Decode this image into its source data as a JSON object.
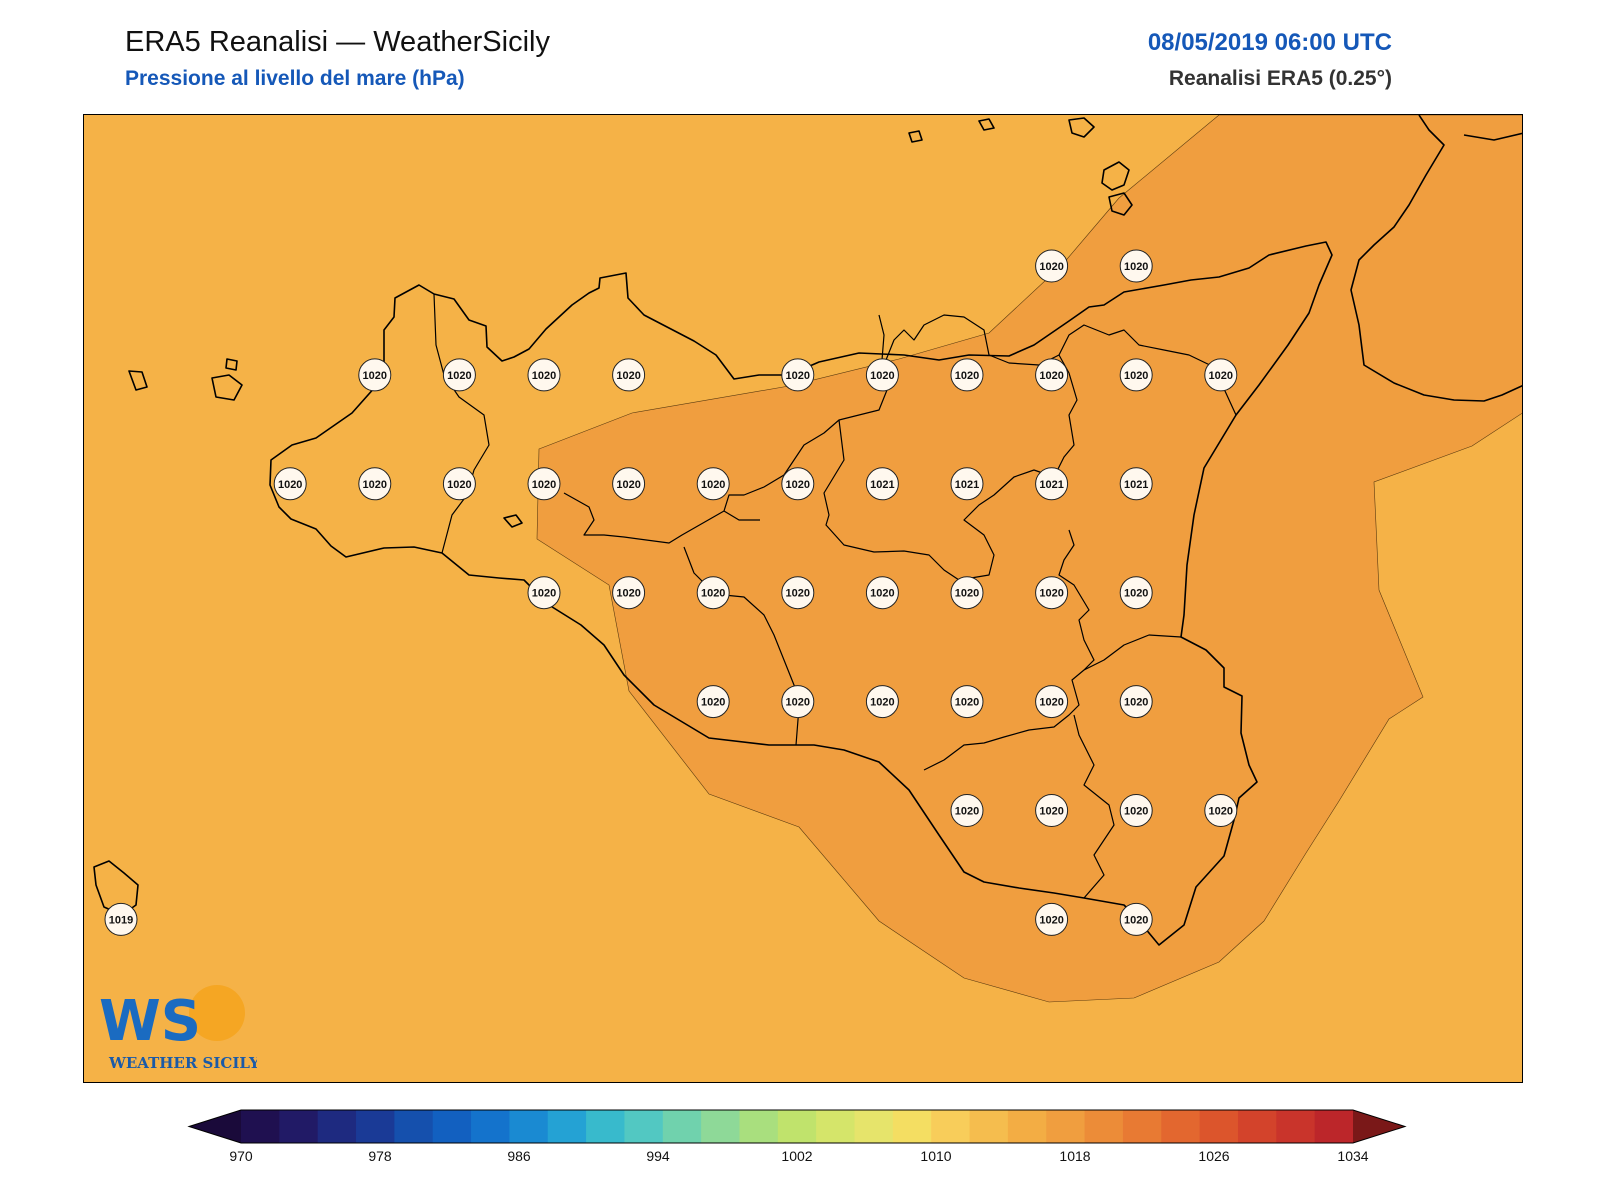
{
  "header": {
    "title": "ERA5 Reanalisi — WeatherSicily",
    "subtitle": "Pressione al livello del mare (hPa)",
    "datetime": "08/05/2019 06:00 UTC",
    "source": "Reanalisi ERA5 (0.25°)"
  },
  "colors": {
    "field_base": "#f5b247",
    "field_high": "#f09e3f",
    "coast": "#000000",
    "label_bg": "#fff8ee"
  },
  "map": {
    "region": "Sicilia",
    "field_levels": [
      1018,
      1020
    ],
    "pressure_labels": [
      {
        "v": "1020",
        "row": 0,
        "col": 11
      },
      {
        "v": "1020",
        "row": 0,
        "col": 12
      },
      {
        "v": "1020",
        "row": 1,
        "col": 3
      },
      {
        "v": "1020",
        "row": 1,
        "col": 4
      },
      {
        "v": "1020",
        "row": 1,
        "col": 5
      },
      {
        "v": "1020",
        "row": 1,
        "col": 6
      },
      {
        "v": "1020",
        "row": 1,
        "col": 8
      },
      {
        "v": "1020",
        "row": 1,
        "col": 9
      },
      {
        "v": "1020",
        "row": 1,
        "col": 10
      },
      {
        "v": "1020",
        "row": 1,
        "col": 11
      },
      {
        "v": "1020",
        "row": 1,
        "col": 12
      },
      {
        "v": "1020",
        "row": 1,
        "col": 13
      },
      {
        "v": "1020",
        "row": 2,
        "col": 2
      },
      {
        "v": "1020",
        "row": 2,
        "col": 3
      },
      {
        "v": "1020",
        "row": 2,
        "col": 4
      },
      {
        "v": "1020",
        "row": 2,
        "col": 5
      },
      {
        "v": "1020",
        "row": 2,
        "col": 6
      },
      {
        "v": "1020",
        "row": 2,
        "col": 7
      },
      {
        "v": "1020",
        "row": 2,
        "col": 8
      },
      {
        "v": "1021",
        "row": 2,
        "col": 9
      },
      {
        "v": "1021",
        "row": 2,
        "col": 10
      },
      {
        "v": "1021",
        "row": 2,
        "col": 11
      },
      {
        "v": "1021",
        "row": 2,
        "col": 12
      },
      {
        "v": "1020",
        "row": 3,
        "col": 5
      },
      {
        "v": "1020",
        "row": 3,
        "col": 6
      },
      {
        "v": "1020",
        "row": 3,
        "col": 7
      },
      {
        "v": "1020",
        "row": 3,
        "col": 8
      },
      {
        "v": "1020",
        "row": 3,
        "col": 9
      },
      {
        "v": "1020",
        "row": 3,
        "col": 10
      },
      {
        "v": "1020",
        "row": 3,
        "col": 11
      },
      {
        "v": "1020",
        "row": 3,
        "col": 12
      },
      {
        "v": "1020",
        "row": 4,
        "col": 7
      },
      {
        "v": "1020",
        "row": 4,
        "col": 8
      },
      {
        "v": "1020",
        "row": 4,
        "col": 9
      },
      {
        "v": "1020",
        "row": 4,
        "col": 10
      },
      {
        "v": "1020",
        "row": 4,
        "col": 11
      },
      {
        "v": "1020",
        "row": 4,
        "col": 12
      },
      {
        "v": "1020",
        "row": 5,
        "col": 10
      },
      {
        "v": "1020",
        "row": 5,
        "col": 11
      },
      {
        "v": "1020",
        "row": 5,
        "col": 12
      },
      {
        "v": "1020",
        "row": 5,
        "col": 13
      },
      {
        "v": "1019",
        "row": 6,
        "col": 0
      },
      {
        "v": "1020",
        "row": 6,
        "col": 11
      },
      {
        "v": "1020",
        "row": 6,
        "col": 12
      }
    ]
  },
  "colorbar": {
    "levels": [
      970,
      974,
      978,
      982,
      986,
      990,
      994,
      998,
      1002,
      1006,
      1010,
      1014,
      1018,
      1022,
      1026,
      1030,
      1034
    ],
    "tick_labels": [
      "970",
      "978",
      "986",
      "994",
      "1002",
      "1010",
      "1018",
      "1026",
      "1034"
    ],
    "colors": [
      "#1f1050",
      "#211a66",
      "#1e2a80",
      "#1a3a96",
      "#1550ad",
      "#1260c0",
      "#1473cc",
      "#1a8ad2",
      "#24a2d4",
      "#38bacc",
      "#52c8c2",
      "#70d2ad",
      "#8ed998",
      "#a9df7e",
      "#c0e36c",
      "#d5e56a",
      "#e6e46b",
      "#f4de62",
      "#f8cd5a",
      "#f5bd4e",
      "#f3ad44",
      "#f09e3f",
      "#ec8c38",
      "#e87a33",
      "#e3672f",
      "#dc552c",
      "#d3432b",
      "#c9342b",
      "#bc262a"
    ],
    "under_color": "#1a0a3a",
    "over_color": "#7a1818"
  },
  "logo": {
    "letters": "WS",
    "text": "WEATHER SICILY"
  }
}
